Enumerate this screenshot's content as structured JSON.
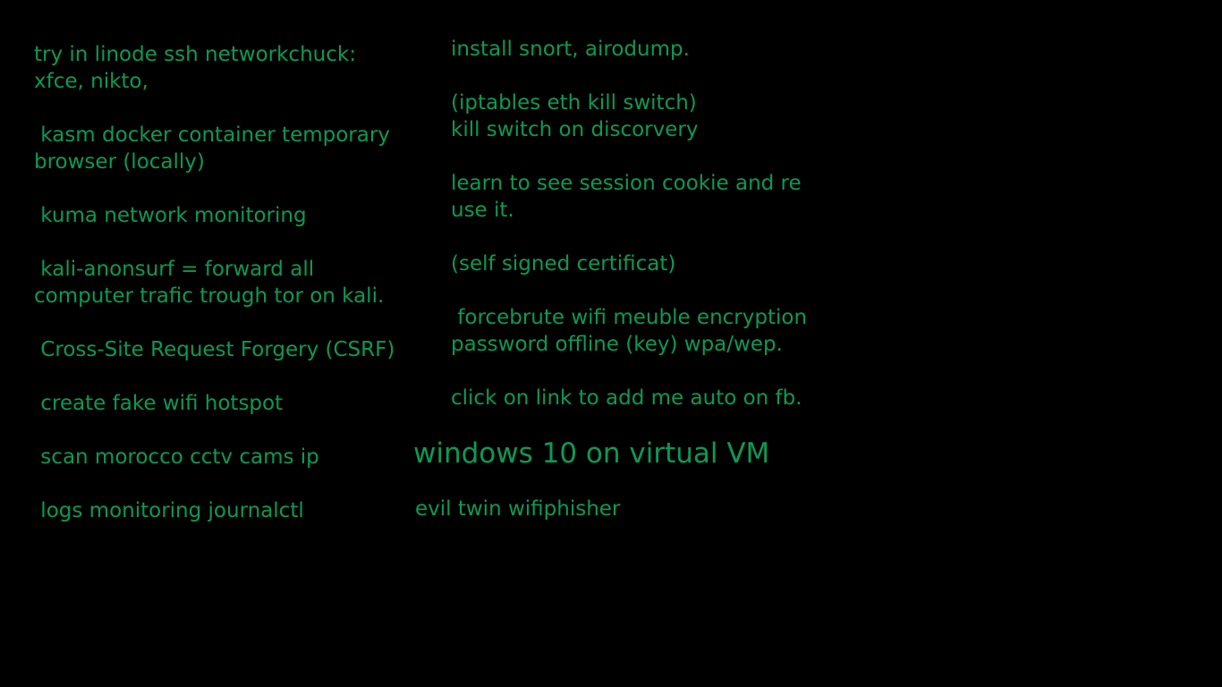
{
  "desktop": {
    "text_color": "#0b9a55",
    "background": "#000000",
    "notes": {
      "left": "try in linode ssh networkchuck:\nxfce, nikto,\n\n kasm docker container temporary\nbrowser (locally)\n\n kuma network monitoring\n\n kali-anonsurf = forward all\ncomputer trafic trough tor on kali.\n\n Cross-Site Request Forgery (CSRF)\n\n create fake wifi hotspot\n\n scan morocco cctv cams ip\n\n logs monitoring journalctl",
      "right": "install snort, airodump.\n\n(iptables eth kill switch)\nkill switch on discorvery\n\nlearn to see session cookie and re\nuse it.\n\n(self signed certificat)\n\n forcebrute wifi meuble encryption\npassword offline (key) wpa/wep.\n\nclick on link to add me auto on fb.",
      "vm": "windows 10 on virtual VM",
      "evil_twin": "evil twin wifiphisher"
    }
  }
}
